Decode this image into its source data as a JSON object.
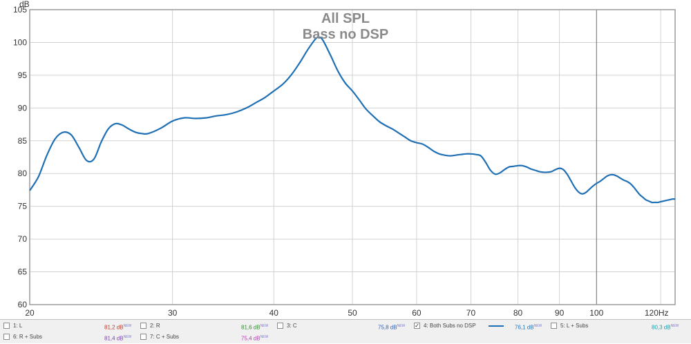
{
  "chart_data": {
    "type": "line",
    "title": "All SPL",
    "subtitle": "Bass no DSP",
    "ylabel": "dB",
    "xlabel": "",
    "x_unit": "Hz",
    "xscale": "log",
    "xlim": [
      20,
      125
    ],
    "ylim": [
      60,
      105
    ],
    "grid": true,
    "x_ticks": [
      20,
      30,
      40,
      50,
      60,
      70,
      80,
      90,
      100,
      120
    ],
    "x_tick_labels": [
      "20",
      "30",
      "40",
      "50",
      "60",
      "70",
      "80",
      "90",
      "100",
      "120Hz"
    ],
    "y_ticks": [
      60,
      65,
      70,
      75,
      80,
      85,
      90,
      95,
      100,
      105
    ],
    "series": [
      {
        "name": "4: Both Subs no DSP",
        "color": "#1f6fb4",
        "x": [
          20,
          20.5,
          21,
          21.5,
          22,
          22.5,
          23,
          23.5,
          24,
          24.5,
          25,
          25.5,
          26,
          26.5,
          27,
          27.5,
          28,
          29,
          30,
          31,
          32,
          33,
          34,
          35,
          36,
          37,
          38,
          39,
          40,
          41,
          42,
          43,
          44,
          45,
          45.5,
          46,
          47,
          48,
          49,
          50,
          51,
          52,
          53,
          54,
          55,
          56,
          57,
          58,
          59,
          60,
          61,
          62,
          63,
          64,
          65,
          66,
          67,
          68,
          69,
          70,
          71,
          72,
          73,
          74,
          75,
          76,
          77,
          78,
          79,
          80,
          81,
          82,
          83,
          84,
          85,
          86,
          87,
          88,
          89,
          90,
          91,
          92,
          93,
          94,
          95,
          96,
          97,
          98,
          99,
          100,
          101,
          102,
          103,
          104,
          105,
          106,
          107,
          108,
          109,
          110,
          111,
          112,
          113,
          114,
          115,
          116,
          117,
          118,
          119,
          120,
          121,
          122,
          123,
          124,
          125
        ],
        "values": [
          77.4,
          79.5,
          82.8,
          85.3,
          86.3,
          85.9,
          84.0,
          82.0,
          82.2,
          84.8,
          86.8,
          87.6,
          87.4,
          86.8,
          86.3,
          86.1,
          86.1,
          86.9,
          88.0,
          88.5,
          88.4,
          88.5,
          88.8,
          89.0,
          89.4,
          90.0,
          90.8,
          91.6,
          92.6,
          93.6,
          95.0,
          96.8,
          98.8,
          100.5,
          100.8,
          100.3,
          98.0,
          95.6,
          93.8,
          92.6,
          91.2,
          89.8,
          88.8,
          87.9,
          87.3,
          86.8,
          86.2,
          85.6,
          85.0,
          84.7,
          84.5,
          84.0,
          83.4,
          83.0,
          82.8,
          82.7,
          82.8,
          82.9,
          83.0,
          83.0,
          82.9,
          82.7,
          81.7,
          80.5,
          79.9,
          80.1,
          80.6,
          81.0,
          81.1,
          81.2,
          81.2,
          81.0,
          80.7,
          80.5,
          80.3,
          80.2,
          80.2,
          80.3,
          80.6,
          80.8,
          80.6,
          79.9,
          78.9,
          77.9,
          77.2,
          76.9,
          77.1,
          77.6,
          78.1,
          78.5,
          78.8,
          79.2,
          79.6,
          79.8,
          79.8,
          79.6,
          79.3,
          79.0,
          78.8,
          78.5,
          78.0,
          77.4,
          76.8,
          76.4,
          76.0,
          75.8,
          75.6,
          75.6,
          75.6,
          75.7,
          75.8,
          75.9,
          76.0,
          76.1,
          76.1
        ]
      }
    ]
  },
  "legend": [
    {
      "label": "1: L",
      "value": "81,2 dB",
      "value_color": "#c0392b",
      "checked": false
    },
    {
      "label": "2: R",
      "value": "81,6 dB",
      "value_color": "#2e8b2e",
      "checked": false
    },
    {
      "label": "3: C",
      "value": "75,8 dB",
      "value_color": "#2f5fb3",
      "checked": false
    },
    {
      "label": "4: Both Subs no DSP",
      "value": "76,1 dB",
      "value_color": "#1f6fb4",
      "checked": true
    },
    {
      "label": "5: L + Subs",
      "value": "80,3 dB",
      "value_color": "#1a9aa8",
      "checked": false
    },
    {
      "label": "6: R + Subs",
      "value": "81,4 dB",
      "value_color": "#7b3fb0",
      "checked": false
    },
    {
      "label": "7: C + Subs",
      "value": "75,4 dB",
      "value_color": "#b03fb0",
      "checked": false
    }
  ],
  "legend_new": "NEW",
  "check_mark": "✓"
}
